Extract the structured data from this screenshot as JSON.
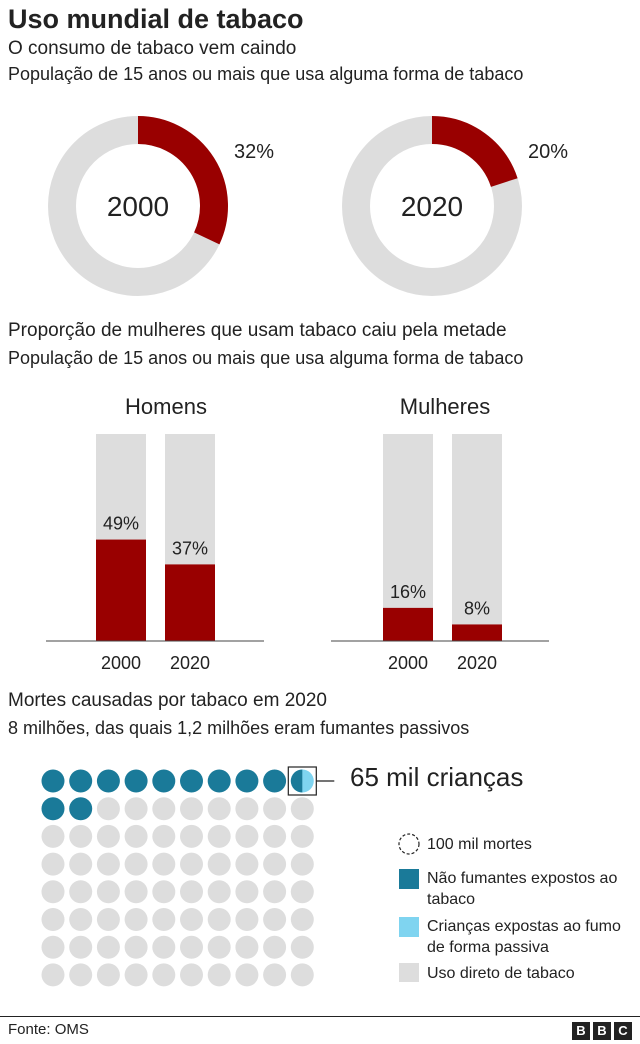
{
  "header": {
    "title": "Uso mundial de tabaco"
  },
  "chart_data": [
    {
      "type": "pie",
      "subtitle": "O consumo de tabaco vem caindo",
      "description": "População de 15 anos ou mais que usa alguma forma de tabaco",
      "donuts": [
        {
          "center_label": "2000",
          "value": 32,
          "value_label": "32%"
        },
        {
          "center_label": "2020",
          "value": 20,
          "value_label": "20%"
        }
      ],
      "colors": {
        "value": "#990000",
        "rest": "#dddddd"
      }
    },
    {
      "type": "bar",
      "subtitle": "Proporção de mulheres que usam tabaco caiu pela metade",
      "description": "População de 15 anos ou mais que usa alguma forma de tabaco",
      "ylim": [
        0,
        100
      ],
      "panels": [
        {
          "title": "Homens",
          "categories": [
            "2000",
            "2020"
          ],
          "values": [
            49,
            37
          ],
          "value_labels": [
            "49%",
            "37%"
          ]
        },
        {
          "title": "Mulheres",
          "categories": [
            "2000",
            "2020"
          ],
          "values": [
            16,
            8
          ],
          "value_labels": [
            "16%",
            "8%"
          ]
        }
      ],
      "colors": {
        "value": "#990000",
        "background": "#dddddd"
      }
    },
    {
      "type": "waffle",
      "subtitle": "Mortes causadas por tabaco em 2020",
      "description": "8 milhões, das quais 1,2 milhões eram fumantes passivos",
      "total_units": 80,
      "units_per_row": 10,
      "callout": "65 mil crianças",
      "categories": [
        {
          "name": "Não fumantes expostos ao tabaco",
          "units": 11.35,
          "color": "#1a7a99"
        },
        {
          "name": "Crianças expostas ao fumo de forma passiva",
          "units": 0.65,
          "color": "#7fd4f0"
        },
        {
          "name": "Uso direto de tabaco",
          "units": 68,
          "color": "#dddddd"
        }
      ],
      "legend_unit": "100 mil mortes"
    }
  ],
  "footer": {
    "source": "Fonte: OMS",
    "logo": [
      "B",
      "B",
      "C"
    ]
  }
}
